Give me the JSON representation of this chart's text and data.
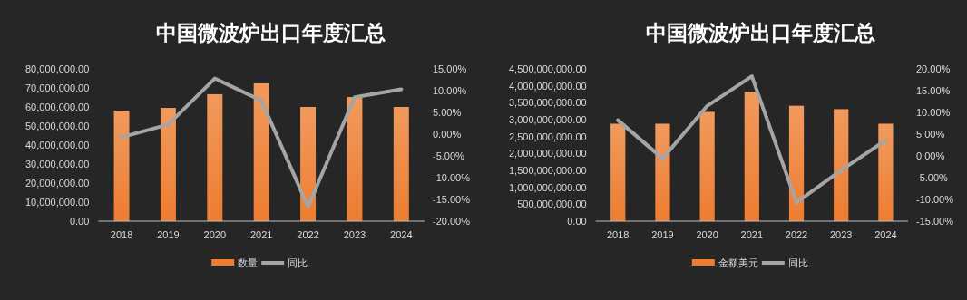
{
  "chart_data": [
    {
      "type": "bar",
      "title": "中国微波炉出口年度汇总",
      "categories": [
        "2018",
        "2019",
        "2020",
        "2021",
        "2022",
        "2023",
        "2024"
      ],
      "series": [
        {
          "name": "数量",
          "color": "#ed7d31",
          "values": [
            58000000,
            59500000,
            66700000,
            72400000,
            60000000,
            65200000,
            60000000
          ]
        },
        {
          "name": "同比",
          "type": "line",
          "axis": "y2",
          "color": "#a5a5a5",
          "values": [
            -0.7,
            2.2,
            12.8,
            7.7,
            -16.7,
            8.5,
            10.3
          ]
        }
      ],
      "ylim": [
        0,
        80000000
      ],
      "yticks": [
        {
          "value": 0,
          "label": "0.00"
        },
        {
          "value": 10000000,
          "label": "10,000,000.00"
        },
        {
          "value": 20000000,
          "label": "20,000,000.00"
        },
        {
          "value": 30000000,
          "label": "30,000,000.00"
        },
        {
          "value": 40000000,
          "label": "40,000,000.00"
        },
        {
          "value": 50000000,
          "label": "50,000,000.00"
        },
        {
          "value": 60000000,
          "label": "60,000,000.00"
        },
        {
          "value": 70000000,
          "label": "70,000,000.00"
        },
        {
          "value": 80000000,
          "label": "80,000,000.00"
        }
      ],
      "y2lim": [
        -20,
        15
      ],
      "y2ticks": [
        {
          "value": -20,
          "label": "-20.00%"
        },
        {
          "value": -15,
          "label": "-15.00%"
        },
        {
          "value": -10,
          "label": "-10.00%"
        },
        {
          "value": -5,
          "label": "-5.00%"
        },
        {
          "value": 0,
          "label": "0.00%"
        },
        {
          "value": 5,
          "label": "5.00%"
        },
        {
          "value": 10,
          "label": "10.00%"
        },
        {
          "value": 15,
          "label": "15.00%"
        }
      ],
      "legend": "bottom",
      "grid": false
    },
    {
      "type": "bar",
      "title": "中国微波炉出口年度汇总",
      "categories": [
        "2018",
        "2019",
        "2020",
        "2021",
        "2022",
        "2023",
        "2024"
      ],
      "series": [
        {
          "name": "金额美元",
          "color": "#ed7d31",
          "values": [
            2880000000,
            2880000000,
            3230000000,
            3820000000,
            3410000000,
            3310000000,
            2880000000
          ]
        },
        {
          "name": "同比",
          "type": "line",
          "axis": "y2",
          "color": "#a5a5a5",
          "values": [
            8.2,
            -0.6,
            11.5,
            18.3,
            -10.7,
            -3.3,
            3.6
          ]
        }
      ],
      "ylim": [
        0,
        4500000000
      ],
      "yticks": [
        {
          "value": 0,
          "label": "0.00"
        },
        {
          "value": 500000000,
          "label": "500,000,000.00"
        },
        {
          "value": 1000000000,
          "label": "1,000,000,000.00"
        },
        {
          "value": 1500000000,
          "label": "1,500,000,000.00"
        },
        {
          "value": 2000000000,
          "label": "2,000,000,000.00"
        },
        {
          "value": 2500000000,
          "label": "2,500,000,000.00"
        },
        {
          "value": 3000000000,
          "label": "3,000,000,000.00"
        },
        {
          "value": 3500000000,
          "label": "3,500,000,000.00"
        },
        {
          "value": 4000000000,
          "label": "4,000,000,000.00"
        },
        {
          "value": 4500000000,
          "label": "4,500,000,000.00"
        }
      ],
      "y2lim": [
        -15,
        20
      ],
      "y2ticks": [
        {
          "value": -15,
          "label": "-15.00%"
        },
        {
          "value": -10,
          "label": "-10.00%"
        },
        {
          "value": -5,
          "label": "-5.00%"
        },
        {
          "value": 0,
          "label": "0.00%"
        },
        {
          "value": 5,
          "label": "5.00%"
        },
        {
          "value": 10,
          "label": "10.00%"
        },
        {
          "value": 15,
          "label": "15.00%"
        },
        {
          "value": 20,
          "label": "20.00%"
        }
      ],
      "legend": "bottom",
      "grid": false
    }
  ]
}
